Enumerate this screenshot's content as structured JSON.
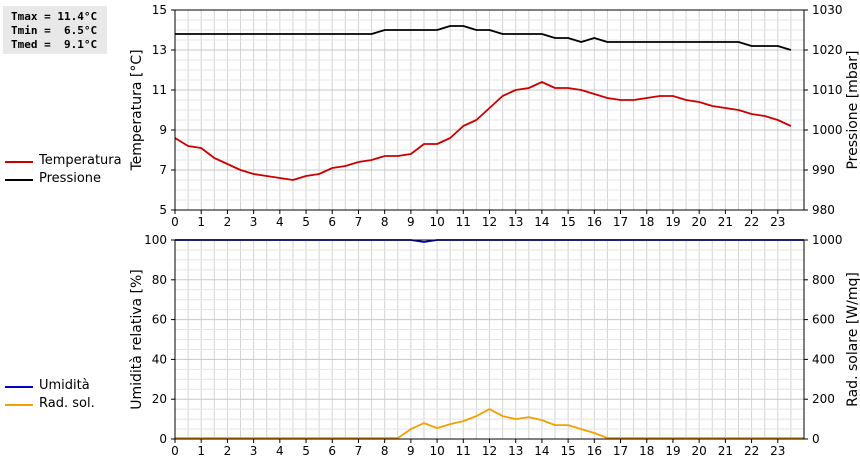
{
  "stats": {
    "tmax": "Tmax = 11.4°C",
    "tmin": "Tmin =  6.5°C",
    "tmed": "Tmed =  9.1°C"
  },
  "legend_top": [
    {
      "label": "Temperatura",
      "color": "#cc0000"
    },
    {
      "label": "Pressione",
      "color": "#000000"
    }
  ],
  "legend_bottom": [
    {
      "label": "Umidità",
      "color": "#0000cc"
    },
    {
      "label": "Rad. sol.",
      "color": "#f5a000"
    }
  ],
  "chart_data": [
    {
      "type": "line",
      "xlim": [
        0,
        24
      ],
      "x_ticks": [
        0,
        1,
        2,
        3,
        4,
        5,
        6,
        7,
        8,
        9,
        10,
        11,
        12,
        13,
        14,
        15,
        16,
        17,
        18,
        19,
        20,
        21,
        22,
        23
      ],
      "ylabel": "Temperatura [°C]",
      "ylim": [
        5,
        15
      ],
      "y_ticks": [
        5,
        7,
        9,
        11,
        13,
        15
      ],
      "y2label": "Pressione [mbar]",
      "y2lim": [
        980,
        1030
      ],
      "y2_ticks": [
        980,
        990,
        1000,
        1010,
        1020,
        1030
      ],
      "grid": true,
      "series": [
        {
          "name": "Temperatura",
          "color": "#cc0000",
          "axis": "left",
          "x": [
            0,
            0.5,
            1,
            1.5,
            2,
            2.5,
            3,
            3.5,
            4,
            4.5,
            5,
            5.5,
            6,
            6.5,
            7,
            7.5,
            8,
            8.5,
            9,
            9.5,
            10,
            10.5,
            11,
            11.5,
            12,
            12.5,
            13,
            13.5,
            14,
            14.5,
            15,
            15.5,
            16,
            16.5,
            17,
            17.5,
            18,
            18.5,
            19,
            19.5,
            20,
            20.5,
            21,
            21.5,
            22,
            22.5,
            23,
            23.5
          ],
          "values": [
            8.6,
            8.2,
            8.1,
            7.6,
            7.3,
            7.0,
            6.8,
            6.7,
            6.6,
            6.5,
            6.7,
            6.8,
            7.1,
            7.2,
            7.4,
            7.5,
            7.7,
            7.7,
            7.8,
            8.3,
            8.3,
            8.6,
            9.2,
            9.5,
            10.1,
            10.7,
            11.0,
            11.1,
            11.4,
            11.1,
            11.1,
            11.0,
            10.8,
            10.6,
            10.5,
            10.5,
            10.6,
            10.7,
            10.7,
            10.5,
            10.4,
            10.2,
            10.1,
            10.0,
            9.8,
            9.7,
            9.5,
            9.2
          ]
        },
        {
          "name": "Pressione",
          "color": "#000000",
          "axis": "right",
          "x": [
            0,
            1,
            2,
            3,
            4,
            5,
            6,
            7,
            7.5,
            8,
            9,
            9.5,
            10,
            10.5,
            11,
            11.5,
            12,
            12.5,
            13,
            13.5,
            14,
            14.5,
            15,
            15.5,
            16,
            16.5,
            17,
            18,
            19,
            20,
            21,
            21.5,
            22,
            23,
            23.5
          ],
          "values": [
            1024,
            1024,
            1024,
            1024,
            1024,
            1024,
            1024,
            1024,
            1024,
            1025,
            1025,
            1025,
            1025,
            1026,
            1026,
            1025,
            1025,
            1024,
            1024,
            1024,
            1024,
            1023,
            1023,
            1022,
            1023,
            1022,
            1022,
            1022,
            1022,
            1022,
            1022,
            1022,
            1021,
            1021,
            1020
          ]
        }
      ]
    },
    {
      "type": "line",
      "xlim": [
        0,
        24
      ],
      "x_ticks": [
        0,
        1,
        2,
        3,
        4,
        5,
        6,
        7,
        8,
        9,
        10,
        11,
        12,
        13,
        14,
        15,
        16,
        17,
        18,
        19,
        20,
        21,
        22,
        23
      ],
      "ylabel": "Umidità relativa [%]",
      "ylim": [
        0,
        100
      ],
      "y_ticks": [
        0,
        20,
        40,
        60,
        80,
        100
      ],
      "y2label": "Rad. solare [W/mq]",
      "y2lim": [
        0,
        1000
      ],
      "y2_ticks": [
        0,
        200,
        400,
        600,
        800,
        1000
      ],
      "grid": true,
      "series": [
        {
          "name": "Umidità",
          "color": "#0000cc",
          "axis": "left",
          "x": [
            0,
            9,
            9.5,
            10,
            24
          ],
          "values": [
            100,
            100,
            99,
            100,
            100
          ]
        },
        {
          "name": "Rad. sol.",
          "color": "#f5a000",
          "axis": "right",
          "x": [
            0,
            8,
            8.5,
            9,
            9.5,
            10,
            10.5,
            11,
            11.5,
            12,
            12.5,
            13,
            13.5,
            14,
            14.5,
            15,
            15.5,
            16,
            16.5,
            24
          ],
          "values": [
            5,
            5,
            5,
            50,
            80,
            55,
            75,
            90,
            115,
            150,
            115,
            100,
            110,
            95,
            70,
            70,
            50,
            30,
            5,
            5
          ]
        }
      ]
    }
  ]
}
